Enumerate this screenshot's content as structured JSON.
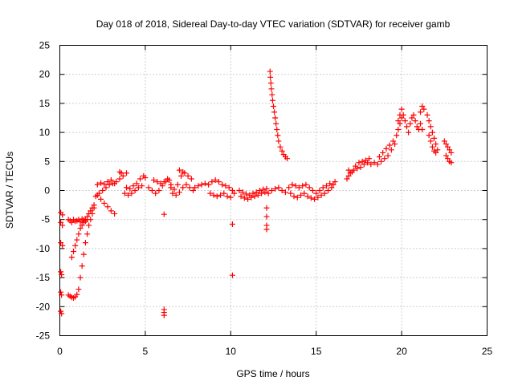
{
  "chart_data": {
    "type": "scatter",
    "title": "Day 018 of 2018, Sidereal Day-to-day VTEC variation (SDTVAR) for receiver gamb",
    "xlabel": "GPS time / hours",
    "ylabel": "SDTVAR / TECUs",
    "xlim": [
      0,
      25
    ],
    "ylim": [
      -25,
      25
    ],
    "xticks": [
      0,
      5,
      10,
      15,
      20,
      25
    ],
    "yticks": [
      -25,
      -20,
      -15,
      -10,
      -5,
      0,
      5,
      10,
      15,
      20,
      25
    ],
    "grid": true,
    "marker": "+",
    "color": "#ff0000",
    "series": [
      {
        "name": "SDTVAR",
        "points": [
          [
            0.05,
            -3.8
          ],
          [
            0.05,
            -5.5
          ],
          [
            0.05,
            -9.0
          ],
          [
            0.05,
            -14.0
          ],
          [
            0.05,
            -17.5
          ],
          [
            0.05,
            -20.8
          ],
          [
            0.15,
            -4.2
          ],
          [
            0.15,
            -6.0
          ],
          [
            0.15,
            -9.5
          ],
          [
            0.1,
            -14.5
          ],
          [
            0.1,
            -18.0
          ],
          [
            0.1,
            -21.2
          ],
          [
            0.5,
            -5.0
          ],
          [
            0.6,
            -5.2
          ],
          [
            0.7,
            -5.5
          ],
          [
            0.8,
            -5.0
          ],
          [
            0.9,
            -5.3
          ],
          [
            1.0,
            -5.2
          ],
          [
            1.1,
            -5.0
          ],
          [
            1.2,
            -5.4
          ],
          [
            1.3,
            -4.9
          ],
          [
            1.4,
            -5.1
          ],
          [
            1.5,
            -5.3
          ],
          [
            1.6,
            -5.0
          ],
          [
            0.7,
            -11.5
          ],
          [
            0.8,
            -10.5
          ],
          [
            0.9,
            -9.5
          ],
          [
            1.0,
            -8.5
          ],
          [
            1.1,
            -7.5
          ],
          [
            1.2,
            -6.5
          ],
          [
            1.3,
            -6.0
          ],
          [
            1.4,
            -5.5
          ],
          [
            1.5,
            -5.0
          ],
          [
            1.6,
            -4.5
          ],
          [
            1.7,
            -4.0
          ],
          [
            1.8,
            -3.5
          ],
          [
            1.9,
            -3.0
          ],
          [
            2.0,
            -2.5
          ],
          [
            0.5,
            -18.0
          ],
          [
            0.6,
            -18.2
          ],
          [
            0.7,
            -18.4
          ],
          [
            0.8,
            -18.5
          ],
          [
            0.9,
            -18.3
          ],
          [
            1.0,
            -17.9
          ],
          [
            1.1,
            -17.0
          ],
          [
            1.2,
            -15.0
          ],
          [
            1.3,
            -13.0
          ],
          [
            1.4,
            -11.0
          ],
          [
            1.5,
            -9.0
          ],
          [
            1.6,
            -7.5
          ],
          [
            1.7,
            -6.0
          ],
          [
            1.8,
            -5.0
          ],
          [
            1.9,
            -4.0
          ],
          [
            2.0,
            -3.0
          ],
          [
            2.1,
            -1.0
          ],
          [
            2.3,
            -0.5
          ],
          [
            2.5,
            0.0
          ],
          [
            2.7,
            0.5
          ],
          [
            2.9,
            1.0
          ],
          [
            3.1,
            1.2
          ],
          [
            3.3,
            1.5
          ],
          [
            3.5,
            2.0
          ],
          [
            3.7,
            2.5
          ],
          [
            3.9,
            3.0
          ],
          [
            3.5,
            3.2
          ],
          [
            3.6,
            3.0
          ],
          [
            2.2,
            -0.8
          ],
          [
            2.4,
            -1.5
          ],
          [
            2.6,
            -2.2
          ],
          [
            2.8,
            -2.8
          ],
          [
            3.0,
            -3.5
          ],
          [
            3.2,
            -4.0
          ],
          [
            2.2,
            1.0
          ],
          [
            2.4,
            1.3
          ],
          [
            2.6,
            1.1
          ],
          [
            2.8,
            1.5
          ],
          [
            3.0,
            1.8
          ],
          [
            3.2,
            1.2
          ],
          [
            3.9,
            0.5
          ],
          [
            4.1,
            0.3
          ],
          [
            4.3,
            0.8
          ],
          [
            4.5,
            1.2
          ],
          [
            4.7,
            2.0
          ],
          [
            4.9,
            2.5
          ],
          [
            5.0,
            2.2
          ],
          [
            3.8,
            -0.5
          ],
          [
            4.0,
            -0.8
          ],
          [
            4.2,
            -0.5
          ],
          [
            4.4,
            0.0
          ],
          [
            4.6,
            0.5
          ],
          [
            4.8,
            0.8
          ],
          [
            5.2,
            0.5
          ],
          [
            5.4,
            0.0
          ],
          [
            5.6,
            -0.5
          ],
          [
            5.8,
            0.0
          ],
          [
            6.0,
            0.8
          ],
          [
            6.2,
            1.5
          ],
          [
            6.4,
            1.8
          ],
          [
            5.5,
            1.8
          ],
          [
            5.7,
            1.5
          ],
          [
            5.9,
            1.2
          ],
          [
            6.1,
            1.5
          ],
          [
            6.3,
            2.0
          ],
          [
            6.5,
            1.0
          ],
          [
            6.1,
            -4.1
          ],
          [
            6.1,
            -20.5
          ],
          [
            6.1,
            -21.0
          ],
          [
            6.1,
            -21.5
          ],
          [
            6.5,
            0.5
          ],
          [
            6.7,
            0.2
          ],
          [
            6.9,
            1.0
          ],
          [
            7.1,
            2.5
          ],
          [
            7.3,
            3.0
          ],
          [
            7.5,
            2.5
          ],
          [
            7.7,
            2.0
          ],
          [
            6.6,
            -0.5
          ],
          [
            6.8,
            -0.8
          ],
          [
            7.0,
            -0.3
          ],
          [
            7.2,
            0.5
          ],
          [
            7.4,
            1.0
          ],
          [
            7.6,
            0.5
          ],
          [
            7.8,
            0.0
          ],
          [
            7.0,
            3.5
          ],
          [
            7.2,
            3.2
          ],
          [
            7.9,
            0.5
          ],
          [
            8.1,
            0.8
          ],
          [
            8.3,
            1.0
          ],
          [
            8.5,
            1.2
          ],
          [
            8.7,
            1.0
          ],
          [
            8.9,
            1.5
          ],
          [
            9.1,
            1.8
          ],
          [
            9.3,
            1.5
          ],
          [
            9.5,
            1.0
          ],
          [
            9.7,
            0.8
          ],
          [
            9.9,
            0.5
          ],
          [
            10.1,
            0.0
          ],
          [
            8.8,
            -0.5
          ],
          [
            9.0,
            -0.8
          ],
          [
            9.2,
            -1.0
          ],
          [
            9.4,
            -0.8
          ],
          [
            9.6,
            -0.5
          ],
          [
            9.8,
            -1.0
          ],
          [
            10.0,
            -1.2
          ],
          [
            10.2,
            -0.5
          ],
          [
            10.1,
            -5.8
          ],
          [
            10.1,
            -14.6
          ],
          [
            10.5,
            0.0
          ],
          [
            10.7,
            -0.3
          ],
          [
            10.9,
            -0.6
          ],
          [
            11.1,
            -0.8
          ],
          [
            11.3,
            -0.5
          ],
          [
            11.5,
            -0.3
          ],
          [
            11.7,
            0.0
          ],
          [
            11.9,
            0.2
          ],
          [
            12.1,
            0.3
          ],
          [
            10.6,
            -1.0
          ],
          [
            10.8,
            -1.3
          ],
          [
            11.0,
            -1.5
          ],
          [
            11.2,
            -1.2
          ],
          [
            11.4,
            -1.0
          ],
          [
            11.6,
            -0.8
          ],
          [
            11.8,
            -0.5
          ],
          [
            12.0,
            -0.3
          ],
          [
            12.1,
            -3.0
          ],
          [
            12.1,
            -4.5
          ],
          [
            12.1,
            -6.0
          ],
          [
            12.1,
            -6.7
          ],
          [
            12.3,
            20.5
          ],
          [
            12.32,
            19.5
          ],
          [
            12.35,
            18.5
          ],
          [
            12.38,
            17.5
          ],
          [
            12.42,
            16.5
          ],
          [
            12.45,
            15.5
          ],
          [
            12.5,
            14.5
          ],
          [
            12.55,
            13.5
          ],
          [
            12.6,
            12.5
          ],
          [
            12.65,
            11.5
          ],
          [
            12.7,
            10.5
          ],
          [
            12.75,
            9.5
          ],
          [
            12.8,
            8.5
          ],
          [
            12.9,
            7.5
          ],
          [
            13.0,
            6.8
          ],
          [
            13.1,
            6.2
          ],
          [
            13.2,
            5.8
          ],
          [
            13.3,
            5.5
          ],
          [
            12.2,
            -0.5
          ],
          [
            12.4,
            0.0
          ],
          [
            12.6,
            0.3
          ],
          [
            12.8,
            0.5
          ],
          [
            13.0,
            0.0
          ],
          [
            13.2,
            -0.3
          ],
          [
            13.4,
            0.5
          ],
          [
            13.6,
            1.0
          ],
          [
            13.8,
            0.8
          ],
          [
            14.0,
            0.5
          ],
          [
            14.2,
            0.8
          ],
          [
            14.4,
            1.0
          ],
          [
            13.5,
            -0.5
          ],
          [
            13.7,
            -1.0
          ],
          [
            13.9,
            -1.2
          ],
          [
            14.1,
            -0.8
          ],
          [
            14.3,
            -0.5
          ],
          [
            14.5,
            -1.0
          ],
          [
            14.7,
            -1.3
          ],
          [
            14.9,
            -1.5
          ],
          [
            15.1,
            -1.2
          ],
          [
            15.3,
            -0.8
          ],
          [
            15.5,
            -0.5
          ],
          [
            15.7,
            0.0
          ],
          [
            15.9,
            0.5
          ],
          [
            16.0,
            1.0
          ],
          [
            16.1,
            1.5
          ],
          [
            14.6,
            0.5
          ],
          [
            14.8,
            0.0
          ],
          [
            15.0,
            -0.5
          ],
          [
            15.2,
            0.0
          ],
          [
            15.4,
            0.5
          ],
          [
            15.6,
            0.8
          ],
          [
            15.8,
            1.2
          ],
          [
            16.8,
            2.0
          ],
          [
            16.9,
            2.5
          ],
          [
            17.0,
            3.0
          ],
          [
            17.2,
            3.5
          ],
          [
            17.4,
            3.8
          ],
          [
            17.6,
            4.0
          ],
          [
            17.8,
            4.5
          ],
          [
            18.0,
            4.8
          ],
          [
            18.2,
            4.5
          ],
          [
            18.4,
            4.8
          ],
          [
            16.9,
            3.5
          ],
          [
            17.1,
            3.2
          ],
          [
            17.3,
            4.2
          ],
          [
            17.5,
            4.8
          ],
          [
            17.7,
            5.0
          ],
          [
            17.9,
            5.2
          ],
          [
            18.1,
            5.5
          ],
          [
            18.6,
            4.5
          ],
          [
            18.8,
            5.0
          ],
          [
            19.0,
            5.5
          ],
          [
            19.2,
            6.0
          ],
          [
            19.4,
            7.0
          ],
          [
            19.6,
            8.0
          ],
          [
            18.7,
            5.8
          ],
          [
            18.9,
            6.5
          ],
          [
            19.1,
            7.2
          ],
          [
            19.3,
            7.8
          ],
          [
            19.5,
            8.5
          ],
          [
            19.7,
            9.5
          ],
          [
            19.8,
            10.5
          ],
          [
            19.9,
            11.5
          ],
          [
            20.0,
            12.5
          ],
          [
            20.1,
            13.0
          ],
          [
            20.2,
            12.0
          ],
          [
            20.3,
            11.0
          ],
          [
            20.4,
            10.0
          ],
          [
            19.8,
            12.0
          ],
          [
            19.9,
            13.0
          ],
          [
            20.0,
            14.0
          ],
          [
            20.5,
            11.5
          ],
          [
            20.6,
            12.5
          ],
          [
            20.7,
            13.0
          ],
          [
            20.8,
            12.0
          ],
          [
            20.9,
            11.0
          ],
          [
            21.0,
            10.5
          ],
          [
            21.1,
            13.5
          ],
          [
            21.2,
            14.5
          ],
          [
            21.3,
            14.0
          ],
          [
            21.1,
            11.5
          ],
          [
            21.2,
            10.5
          ],
          [
            21.5,
            13.0
          ],
          [
            21.6,
            12.0
          ],
          [
            21.7,
            11.0
          ],
          [
            21.8,
            10.0
          ],
          [
            21.9,
            9.0
          ],
          [
            22.0,
            8.0
          ],
          [
            22.1,
            7.0
          ],
          [
            21.6,
            9.5
          ],
          [
            21.7,
            8.5
          ],
          [
            21.8,
            7.5
          ],
          [
            21.9,
            6.8
          ],
          [
            22.0,
            6.5
          ],
          [
            22.5,
            8.5
          ],
          [
            22.6,
            8.0
          ],
          [
            22.7,
            7.5
          ],
          [
            22.8,
            7.0
          ],
          [
            22.9,
            6.5
          ],
          [
            22.6,
            6.0
          ],
          [
            22.7,
            5.5
          ],
          [
            22.8,
            5.0
          ],
          [
            22.9,
            4.8
          ]
        ]
      }
    ]
  }
}
